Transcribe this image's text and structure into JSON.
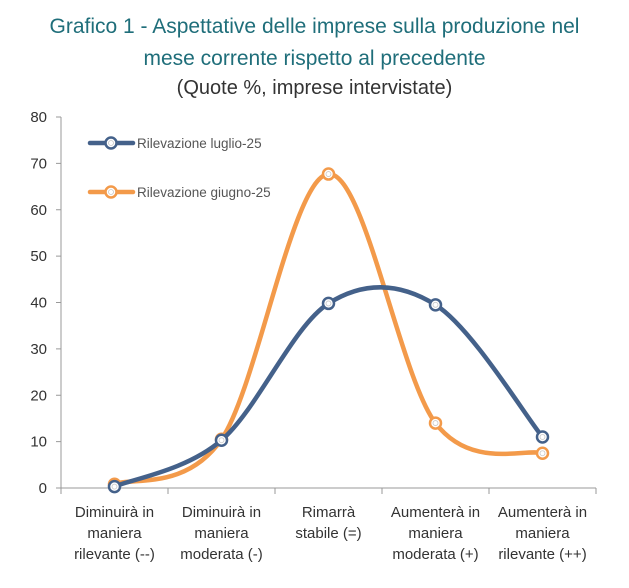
{
  "title_line1": "Grafico 1 - Aspettative delle imprese sulla produzione nel",
  "title_line2": "mese corrente rispetto al precedente",
  "subtitle": "(Quote %, imprese intervistate)",
  "chart_data": {
    "type": "line",
    "title": "Grafico 1 - Aspettative delle imprese sulla produzione nel mese corrente rispetto al precedente",
    "subtitle": "(Quote %, imprese intervistate)",
    "categories": [
      [
        "Diminuirà in",
        "maniera",
        "rilevante (--)"
      ],
      [
        "Diminuirà in",
        "maniera",
        "moderata (-)"
      ],
      [
        "Rimarrà",
        "stabile (=)"
      ],
      [
        "Aumenterà in",
        "maniera",
        "moderata (+)"
      ],
      [
        "Aumenterà in",
        "maniera",
        "rilevante (++)"
      ]
    ],
    "yticks": [
      "0",
      "10",
      "20",
      "30",
      "40",
      "50",
      "60",
      "70",
      "80"
    ],
    "ylim": [
      0,
      80
    ],
    "smooth": true,
    "grid": false,
    "legend_position": "top-left",
    "series": [
      {
        "name": "Rilevazione luglio-25",
        "color": "#44618a",
        "values": [
          0.3,
          10.3,
          39.8,
          39.5,
          11
        ]
      },
      {
        "name": "Rilevazione giugno-25",
        "color": "#f39a4a",
        "values": [
          0.8,
          10.5,
          67.7,
          14,
          7.5
        ]
      }
    ]
  }
}
